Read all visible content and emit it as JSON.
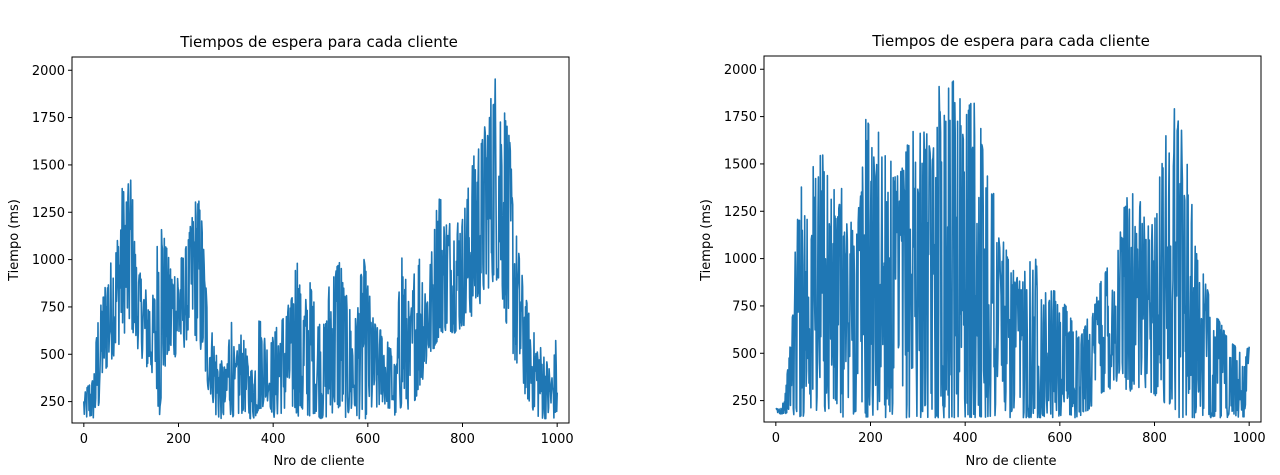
{
  "chart_data": [
    {
      "type": "line",
      "title": "Tiempos de espera para cada cliente",
      "xlabel": "Nro de cliente",
      "ylabel": "Tiempo (ms)",
      "xlim": [
        -25,
        1025
      ],
      "ylim": [
        137,
        2070
      ],
      "xticks": [
        0,
        200,
        400,
        600,
        800,
        1000
      ],
      "yticks": [
        250,
        500,
        750,
        1000,
        1250,
        1500,
        1750,
        2000
      ],
      "color": "#1f77b4",
      "grid": false,
      "series": [
        {
          "x": [
            0,
            10,
            20,
            30,
            40,
            50,
            60,
            70,
            80,
            90,
            100,
            110,
            120,
            130,
            140,
            150,
            160,
            170,
            180,
            190,
            200,
            210,
            220,
            230,
            240,
            250,
            260,
            270,
            280,
            290,
            300,
            310,
            320,
            330,
            340,
            350,
            360,
            370,
            380,
            390,
            400,
            410,
            420,
            430,
            440,
            450,
            460,
            470,
            480,
            490,
            500,
            510,
            520,
            530,
            540,
            550,
            560,
            570,
            580,
            590,
            600,
            610,
            620,
            630,
            640,
            650,
            660,
            670,
            680,
            690,
            700,
            710,
            720,
            730,
            740,
            750,
            760,
            770,
            780,
            790,
            800,
            810,
            820,
            830,
            840,
            850,
            860,
            870,
            880,
            890,
            900,
            910,
            920,
            930,
            940,
            950,
            960,
            970,
            980,
            990,
            1000
          ],
          "min": [
            160,
            160,
            160,
            180,
            380,
            430,
            480,
            520,
            600,
            620,
            640,
            550,
            500,
            430,
            400,
            380,
            160,
            420,
            450,
            480,
            500,
            520,
            600,
            620,
            560,
            480,
            320,
            280,
            160,
            160,
            160,
            180,
            160,
            180,
            200,
            160,
            160,
            200,
            230,
            260,
            160,
            180,
            190,
            200,
            210,
            180,
            160,
            160,
            180,
            190,
            160,
            160,
            180,
            200,
            200,
            170,
            160,
            160,
            160,
            160,
            160,
            180,
            200,
            250,
            220,
            200,
            160,
            210,
            200,
            220,
            260,
            320,
            400,
            470,
            530,
            590,
            620,
            630,
            610,
            620,
            640,
            680,
            700,
            730,
            780,
            830,
            870,
            900,
            860,
            700,
            570,
            470,
            380,
            300,
            250,
            200,
            170,
            160,
            160,
            160,
            160
          ],
          "max": [
            280,
            350,
            370,
            700,
            800,
            950,
            1000,
            1100,
            1380,
            1360,
            1460,
            1000,
            920,
            850,
            800,
            820,
            1360,
            1120,
            1000,
            950,
            1000,
            1020,
            1100,
            1250,
            1360,
            1200,
            800,
            630,
            520,
            470,
            420,
            750,
            450,
            620,
            560,
            420,
            430,
            700,
            630,
            520,
            600,
            660,
            700,
            750,
            800,
            1060,
            760,
            800,
            900,
            700,
            680,
            650,
            920,
            950,
            1060,
            840,
            780,
            620,
            800,
            1030,
            880,
            700,
            640,
            630,
            580,
            520,
            420,
            1130,
            900,
            700,
            1000,
            1040,
            920,
            950,
            1140,
            1420,
            1200,
            1220,
            1170,
            1220,
            1220,
            1350,
            1500,
            1620,
            1620,
            1740,
            1860,
            1980,
            1850,
            1800,
            1620,
            1200,
            1020,
            850,
            720,
            620,
            560,
            520,
            450,
            400,
            650
          ]
        }
      ]
    },
    {
      "type": "line",
      "title": "Tiempos de espera para cada cliente",
      "xlabel": "Nro de cliente",
      "ylabel": "Tiempo (ms)",
      "xlim": [
        -25,
        1025
      ],
      "ylim": [
        137,
        2070
      ],
      "xticks": [
        0,
        200,
        400,
        600,
        800,
        1000
      ],
      "yticks": [
        250,
        500,
        750,
        1000,
        1250,
        1500,
        1750,
        2000
      ],
      "color": "#1f77b4",
      "grid": false,
      "series": [
        {
          "x": [
            0,
            10,
            20,
            30,
            40,
            50,
            60,
            70,
            80,
            90,
            100,
            110,
            120,
            130,
            140,
            150,
            160,
            170,
            180,
            190,
            200,
            210,
            220,
            230,
            240,
            250,
            260,
            270,
            280,
            290,
            300,
            310,
            320,
            330,
            340,
            350,
            360,
            370,
            380,
            390,
            400,
            410,
            420,
            430,
            440,
            450,
            460,
            470,
            480,
            490,
            500,
            510,
            520,
            530,
            540,
            550,
            560,
            570,
            580,
            590,
            600,
            610,
            620,
            630,
            640,
            650,
            660,
            670,
            680,
            690,
            700,
            710,
            720,
            730,
            740,
            750,
            760,
            770,
            780,
            790,
            800,
            810,
            820,
            830,
            840,
            850,
            860,
            870,
            880,
            890,
            900,
            910,
            920,
            930,
            940,
            950,
            960,
            970,
            980,
            990,
            1000
          ],
          "min": [
            180,
            180,
            180,
            200,
            160,
            160,
            170,
            200,
            180,
            170,
            200,
            180,
            170,
            160,
            160,
            170,
            180,
            180,
            200,
            160,
            160,
            170,
            180,
            160,
            160,
            160,
            160,
            160,
            160,
            160,
            160,
            160,
            160,
            160,
            160,
            160,
            160,
            160,
            160,
            160,
            160,
            160,
            160,
            160,
            160,
            160,
            160,
            160,
            160,
            160,
            160,
            160,
            160,
            160,
            160,
            160,
            160,
            160,
            160,
            160,
            160,
            160,
            160,
            160,
            160,
            180,
            200,
            230,
            250,
            270,
            300,
            320,
            340,
            330,
            310,
            300,
            290,
            300,
            320,
            300,
            280,
            260,
            240,
            200,
            180,
            160,
            160,
            160,
            160,
            160,
            160,
            160,
            160,
            160,
            160,
            160,
            160,
            160,
            160,
            160,
            500
          ],
          "max": [
            210,
            210,
            290,
            540,
            1000,
            1400,
            1350,
            1380,
            1500,
            1540,
            1550,
            1450,
            1400,
            1280,
            1380,
            1240,
            1200,
            1240,
            1400,
            1740,
            1700,
            1480,
            1750,
            1660,
            1550,
            1430,
            1440,
            1500,
            1630,
            1750,
            1660,
            1680,
            1660,
            1500,
            1880,
            1970,
            1880,
            1920,
            1980,
            1850,
            1750,
            1820,
            1820,
            1780,
            1500,
            1500,
            1400,
            1200,
            1150,
            1000,
            960,
            900,
            880,
            1050,
            960,
            1010,
            900,
            820,
            830,
            830,
            700,
            760,
            720,
            640,
            600,
            620,
            700,
            720,
            820,
            1000,
            1000,
            1010,
            1030,
            1180,
            1340,
            1360,
            1340,
            1300,
            1200,
            1160,
            1270,
            1420,
            1560,
            1830,
            1830,
            1790,
            1700,
            1540,
            1260,
            1000,
            950,
            860,
            740,
            700,
            660,
            600,
            560,
            540,
            520,
            500,
            540
          ]
        }
      ]
    }
  ]
}
